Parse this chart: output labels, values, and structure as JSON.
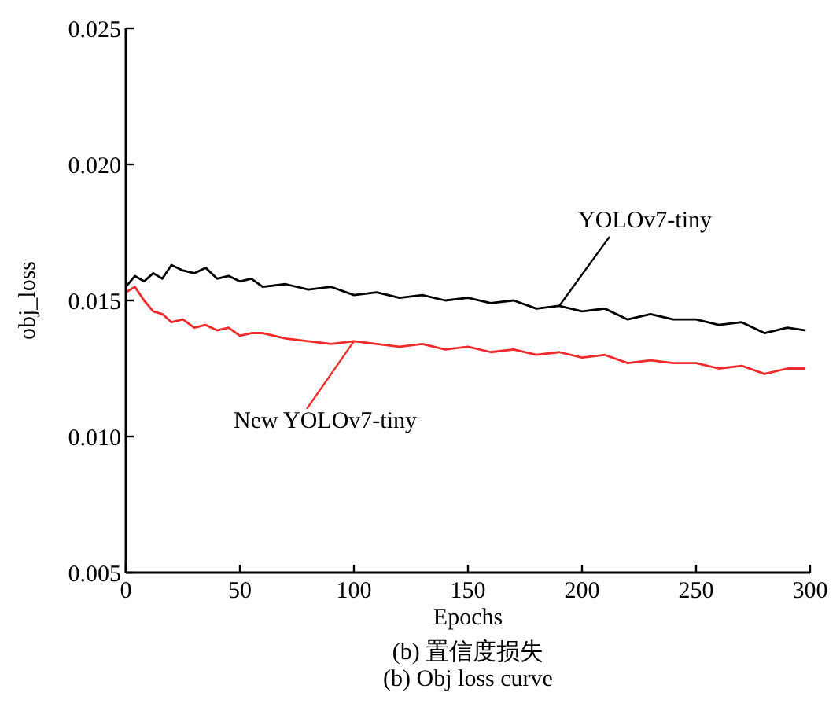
{
  "chart_data": {
    "type": "line",
    "xlabel": "Epochs",
    "ylabel": "obj_loss",
    "x": [
      0,
      4,
      8,
      12,
      16,
      20,
      25,
      30,
      35,
      40,
      45,
      50,
      55,
      60,
      70,
      80,
      90,
      100,
      110,
      120,
      130,
      140,
      150,
      160,
      170,
      180,
      190,
      200,
      210,
      220,
      230,
      240,
      250,
      260,
      270,
      280,
      290,
      298
    ],
    "series": [
      {
        "name": "YOLOv7-tiny",
        "color": "#000000",
        "values": [
          0.0155,
          0.0159,
          0.0157,
          0.016,
          0.0158,
          0.0163,
          0.0161,
          0.016,
          0.0162,
          0.0158,
          0.0159,
          0.0157,
          0.0158,
          0.0155,
          0.0156,
          0.0154,
          0.0155,
          0.0152,
          0.0153,
          0.0151,
          0.0152,
          0.015,
          0.0151,
          0.0149,
          0.015,
          0.0147,
          0.0148,
          0.0146,
          0.0147,
          0.0143,
          0.0145,
          0.0143,
          0.0143,
          0.0141,
          0.0142,
          0.0138,
          0.014,
          0.0139
        ]
      },
      {
        "name": "New YOLOv7-tiny",
        "color": "#ee2a2a",
        "values": [
          0.0153,
          0.0155,
          0.015,
          0.0146,
          0.0145,
          0.0142,
          0.0143,
          0.014,
          0.0141,
          0.0139,
          0.014,
          0.0137,
          0.0138,
          0.0138,
          0.0136,
          0.0135,
          0.0134,
          0.0135,
          0.0134,
          0.0133,
          0.0134,
          0.0132,
          0.0133,
          0.0131,
          0.0132,
          0.013,
          0.0131,
          0.0129,
          0.013,
          0.0127,
          0.0128,
          0.0127,
          0.0127,
          0.0125,
          0.0126,
          0.0123,
          0.0125,
          0.0125
        ]
      }
    ],
    "xlim": [
      0,
      300
    ],
    "xticks": [
      0,
      50,
      100,
      150,
      200,
      250,
      300
    ],
    "ylim": [
      0.005,
      0.025
    ],
    "yticks": [
      0.005,
      {
        "value": 0.01,
        "label": "0.010"
      },
      0.015,
      {
        "value": 0.02,
        "label": "0.020"
      },
      0.025
    ],
    "grid": false,
    "line_style": "solid",
    "annotations": [
      "(b) 置信度损失",
      "(b) Obj  loss curve"
    ]
  }
}
